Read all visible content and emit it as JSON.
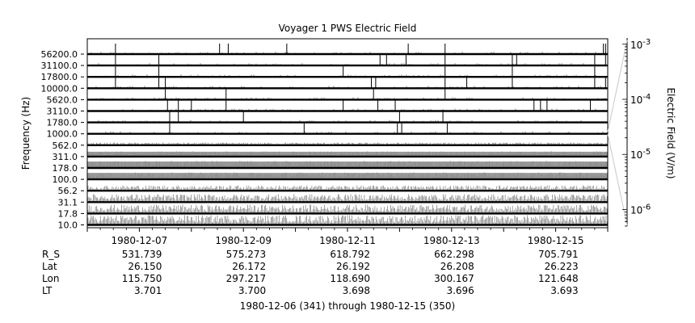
{
  "chart_data": {
    "type": "line",
    "title": "Voyager 1 PWS Electric Field",
    "ylabel": "Frequency (Hz)",
    "colorbar_label": "Electric Field (V/m)",
    "colorbar_ticks": [
      {
        "base": "10",
        "exp": "-3",
        "value": 0.001
      },
      {
        "base": "10",
        "exp": "-4",
        "value": 0.0001
      },
      {
        "base": "10",
        "exp": "-5",
        "value": 1e-05
      },
      {
        "base": "10",
        "exp": "-6",
        "value": 1e-06
      }
    ],
    "colorbar_range": [
      5e-07,
      0.0013
    ],
    "colorbar_scale": "log",
    "channels": [
      "56200.0",
      "31100.0",
      "17800.0",
      "10000.0",
      "5620.0",
      "3110.0",
      "1780.0",
      "1000.0",
      "562.0",
      "311.0",
      "178.0",
      "100.0",
      "56.2",
      "31.1",
      "17.8",
      "10.0"
    ],
    "x_range": [
      "1980-12-06",
      "1980-12-16"
    ],
    "x_tick_labels": [
      "1980-12-07",
      "1980-12-09",
      "1980-12-11",
      "1980-12-13",
      "1980-12-15"
    ],
    "ephemeris_labels": [
      "R_S",
      "Lat",
      "Lon",
      "LT"
    ],
    "ephemeris_rows": [
      [
        "531.739",
        "575.273",
        "618.792",
        "662.298",
        "705.791"
      ],
      [
        "26.150",
        "26.172",
        "26.192",
        "26.208",
        "26.223"
      ],
      [
        "115.750",
        "297.217",
        "118.690",
        "300.167",
        "121.648"
      ],
      [
        "3.701",
        "3.700",
        "3.698",
        "3.696",
        "3.693"
      ]
    ],
    "footer": "1980-12-06 (341) through 1980-12-15 (350)",
    "spikes": [
      {
        "channel": "56200.0",
        "dates": [
          "1980-12-06 13:00",
          "1980-12-08 13:00",
          "1980-12-08 17:00",
          "1980-12-09 20:00",
          "1980-12-12 04:00",
          "1980-12-12 21:00",
          "1980-12-15 22:00",
          "1980-12-15 23:00"
        ]
      },
      {
        "channel": "31100.0",
        "dates": [
          "1980-12-06 13:00",
          "1980-12-07 09:00",
          "1980-12-11 15:00",
          "1980-12-11 18:00",
          "1980-12-12 03:00",
          "1980-12-12 21:00",
          "1980-12-14 04:00",
          "1980-12-14 06:00",
          "1980-12-15 18:00",
          "1980-12-15 23:00"
        ]
      },
      {
        "channel": "17800.0",
        "dates": [
          "1980-12-06 13:00",
          "1980-12-07 09:00",
          "1980-12-10 22:00",
          "1980-12-12 21:00",
          "1980-12-14 04:00",
          "1980-12-15 18:00"
        ]
      },
      {
        "channel": "10000.0",
        "dates": [
          "1980-12-06 13:00",
          "1980-12-07 09:00",
          "1980-12-07 12:00",
          "1980-12-11 11:00",
          "1980-12-11 13:00",
          "1980-12-12 21:00",
          "1980-12-13 07:00",
          "1980-12-14 04:00",
          "1980-12-15 18:00",
          "1980-12-15 23:00"
        ]
      },
      {
        "channel": "5620.0",
        "dates": [
          "1980-12-07 12:00",
          "1980-12-08 16:00",
          "1980-12-11 12:00",
          "1980-12-12 21:00",
          "1980-12-16 00:00"
        ]
      },
      {
        "channel": "3110.0",
        "dates": [
          "1980-12-07 13:00",
          "1980-12-07 18:00",
          "1980-12-08 00:00",
          "1980-12-08 16:00",
          "1980-12-10 22:00",
          "1980-12-11 14:00",
          "1980-12-11 22:00",
          "1980-12-14 14:00",
          "1980-12-14 17:00",
          "1980-12-14 20:00",
          "1980-12-15 16:00"
        ]
      },
      {
        "channel": "1780.0",
        "dates": [
          "1980-12-07 14:00",
          "1980-12-07 18:00",
          "1980-12-09 00:00",
          "1980-12-12 00:00",
          "1980-12-12 20:00",
          "1980-12-16 00:00"
        ]
      },
      {
        "channel": "1000.0",
        "dates": [
          "1980-12-07 14:00",
          "1980-12-10 04:00",
          "1980-12-11 23:00",
          "1980-12-12 01:00",
          "1980-12-12 22:00"
        ]
      }
    ]
  }
}
